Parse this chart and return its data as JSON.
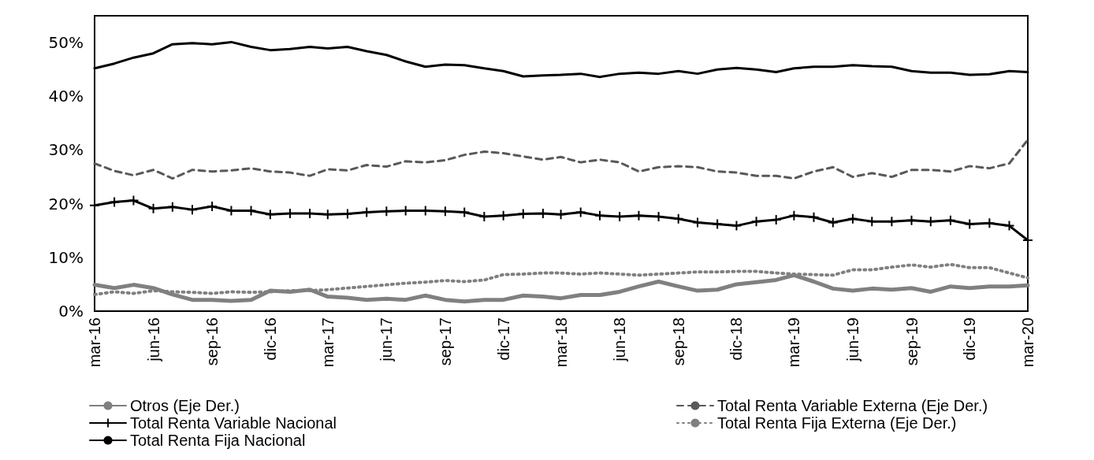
{
  "chart_data": {
    "type": "line",
    "x": [
      "2016-03",
      "2016-04",
      "2016-05",
      "2016-06",
      "2016-07",
      "2016-08",
      "2016-09",
      "2016-10",
      "2016-11",
      "2016-12",
      "2017-01",
      "2017-02",
      "2017-03",
      "2017-04",
      "2017-05",
      "2017-06",
      "2017-07",
      "2017-08",
      "2017-09",
      "2017-10",
      "2017-11",
      "2017-12",
      "2018-01",
      "2018-02",
      "2018-03",
      "2018-04",
      "2018-05",
      "2018-06",
      "2018-07",
      "2018-08",
      "2018-09",
      "2018-10",
      "2018-11",
      "2018-12",
      "2019-01",
      "2019-02",
      "2019-03",
      "2019-04",
      "2019-05",
      "2019-06",
      "2019-07",
      "2019-08",
      "2019-09",
      "2019-10",
      "2019-11",
      "2019-12",
      "2020-01",
      "2020-02",
      "2020-03"
    ],
    "series": [
      {
        "name": "Otros (Eje Der.)",
        "color": "#808080",
        "line_style": "solid",
        "marker": "none",
        "values": [
          4.9,
          4.3,
          4.9,
          4.3,
          3.1,
          2.1,
          2.1,
          1.9,
          2.1,
          3.8,
          3.6,
          4.0,
          2.7,
          2.5,
          2.1,
          2.3,
          2.1,
          2.9,
          2.1,
          1.8,
          2.1,
          2.1,
          2.9,
          2.7,
          2.4,
          3.0,
          3.0,
          3.6,
          4.6,
          5.5,
          4.6,
          3.8,
          4.0,
          5.0,
          5.4,
          5.8,
          6.7,
          5.5,
          4.2,
          3.8,
          4.2,
          4.0,
          4.3,
          3.6,
          4.6,
          4.3,
          4.6,
          4.6,
          4.8
        ]
      },
      {
        "name": "Total Renta Variable Externa (Eje Der.)",
        "color": "#595959",
        "line_style": "dashed",
        "marker": "none",
        "values": [
          27.5,
          26.1,
          25.3,
          26.3,
          24.7,
          26.3,
          26.0,
          26.2,
          26.6,
          26.0,
          25.8,
          25.2,
          26.4,
          26.2,
          27.2,
          26.9,
          27.9,
          27.7,
          28.1,
          29.1,
          29.7,
          29.4,
          28.8,
          28.2,
          28.7,
          27.7,
          28.2,
          27.7,
          26.0,
          26.8,
          27.0,
          26.8,
          26.0,
          25.8,
          25.2,
          25.2,
          24.7,
          26.0,
          26.8,
          25.0,
          25.7,
          25.0,
          26.3,
          26.3,
          26.0,
          27.0,
          26.6,
          27.5,
          31.9
        ]
      },
      {
        "name": "Total Renta Variable Nacional",
        "color": "#000000",
        "line_style": "solid",
        "marker": "cross",
        "values": [
          19.7,
          20.3,
          20.6,
          19.1,
          19.4,
          18.9,
          19.5,
          18.7,
          18.7,
          18.0,
          18.2,
          18.2,
          18.0,
          18.1,
          18.4,
          18.6,
          18.7,
          18.7,
          18.6,
          18.4,
          17.6,
          17.8,
          18.1,
          18.2,
          18.0,
          18.4,
          17.8,
          17.6,
          17.8,
          17.6,
          17.2,
          16.5,
          16.2,
          15.9,
          16.7,
          17.0,
          17.8,
          17.5,
          16.5,
          17.2,
          16.7,
          16.7,
          16.9,
          16.7,
          16.9,
          16.2,
          16.4,
          15.9,
          13.2
        ]
      },
      {
        "name": "Total Renta Fija Externa (Eje Der.)",
        "color": "#808080",
        "line_style": "dotted",
        "marker": "none",
        "values": [
          3.1,
          3.6,
          3.3,
          3.8,
          3.6,
          3.5,
          3.3,
          3.6,
          3.5,
          3.6,
          3.8,
          3.8,
          4.0,
          4.3,
          4.6,
          4.9,
          5.2,
          5.4,
          5.7,
          5.5,
          5.8,
          6.8,
          6.9,
          7.1,
          7.1,
          6.9,
          7.1,
          6.9,
          6.7,
          6.9,
          7.1,
          7.3,
          7.3,
          7.4,
          7.4,
          7.1,
          6.9,
          6.8,
          6.7,
          7.7,
          7.7,
          8.2,
          8.6,
          8.2,
          8.7,
          8.1,
          8.1,
          7.1,
          6.2
        ]
      },
      {
        "name": "Total Renta Fija Nacional",
        "color": "#000000",
        "line_style": "solid",
        "marker": "none",
        "values": [
          45.2,
          46.1,
          47.2,
          48.0,
          49.7,
          49.9,
          49.7,
          50.1,
          49.2,
          48.6,
          48.8,
          49.2,
          48.9,
          49.2,
          48.4,
          47.7,
          46.5,
          45.5,
          45.9,
          45.8,
          45.2,
          44.7,
          43.7,
          43.9,
          44.0,
          44.2,
          43.6,
          44.2,
          44.4,
          44.2,
          44.7,
          44.2,
          45.0,
          45.3,
          45.0,
          44.5,
          45.2,
          45.5,
          45.5,
          45.8,
          45.6,
          45.5,
          44.7,
          44.4,
          44.4,
          44.0,
          44.1,
          44.7,
          44.5
        ]
      }
    ],
    "xlim": [
      "2016-03",
      "2020-03"
    ],
    "xticks": [
      {
        "value": "2016-03",
        "label": "mar-16"
      },
      {
        "value": "2016-06",
        "label": "jun-16"
      },
      {
        "value": "2016-09",
        "label": "sep-16"
      },
      {
        "value": "2016-12",
        "label": "dic-16"
      },
      {
        "value": "2017-03",
        "label": "mar-17"
      },
      {
        "value": "2017-06",
        "label": "jun-17"
      },
      {
        "value": "2017-09",
        "label": "sep-17"
      },
      {
        "value": "2017-12",
        "label": "dic-17"
      },
      {
        "value": "2018-03",
        "label": "mar-18"
      },
      {
        "value": "2018-06",
        "label": "jun-18"
      },
      {
        "value": "2018-09",
        "label": "sep-18"
      },
      {
        "value": "2018-12",
        "label": "dic-18"
      },
      {
        "value": "2019-03",
        "label": "mar-19"
      },
      {
        "value": "2019-06",
        "label": "jun-19"
      },
      {
        "value": "2019-09",
        "label": "sep-19"
      },
      {
        "value": "2019-12",
        "label": "dic-19"
      },
      {
        "value": "2020-03",
        "label": "mar-20"
      }
    ],
    "ylim": [
      0,
      55
    ],
    "yticks": [
      {
        "value": 0,
        "label": "0%"
      },
      {
        "value": 10,
        "label": "10%"
      },
      {
        "value": 20,
        "label": "20%"
      },
      {
        "value": 30,
        "label": "30%"
      },
      {
        "value": 40,
        "label": "40%"
      },
      {
        "value": 50,
        "label": "50%"
      }
    ],
    "grid": false,
    "legend": "bottom"
  }
}
